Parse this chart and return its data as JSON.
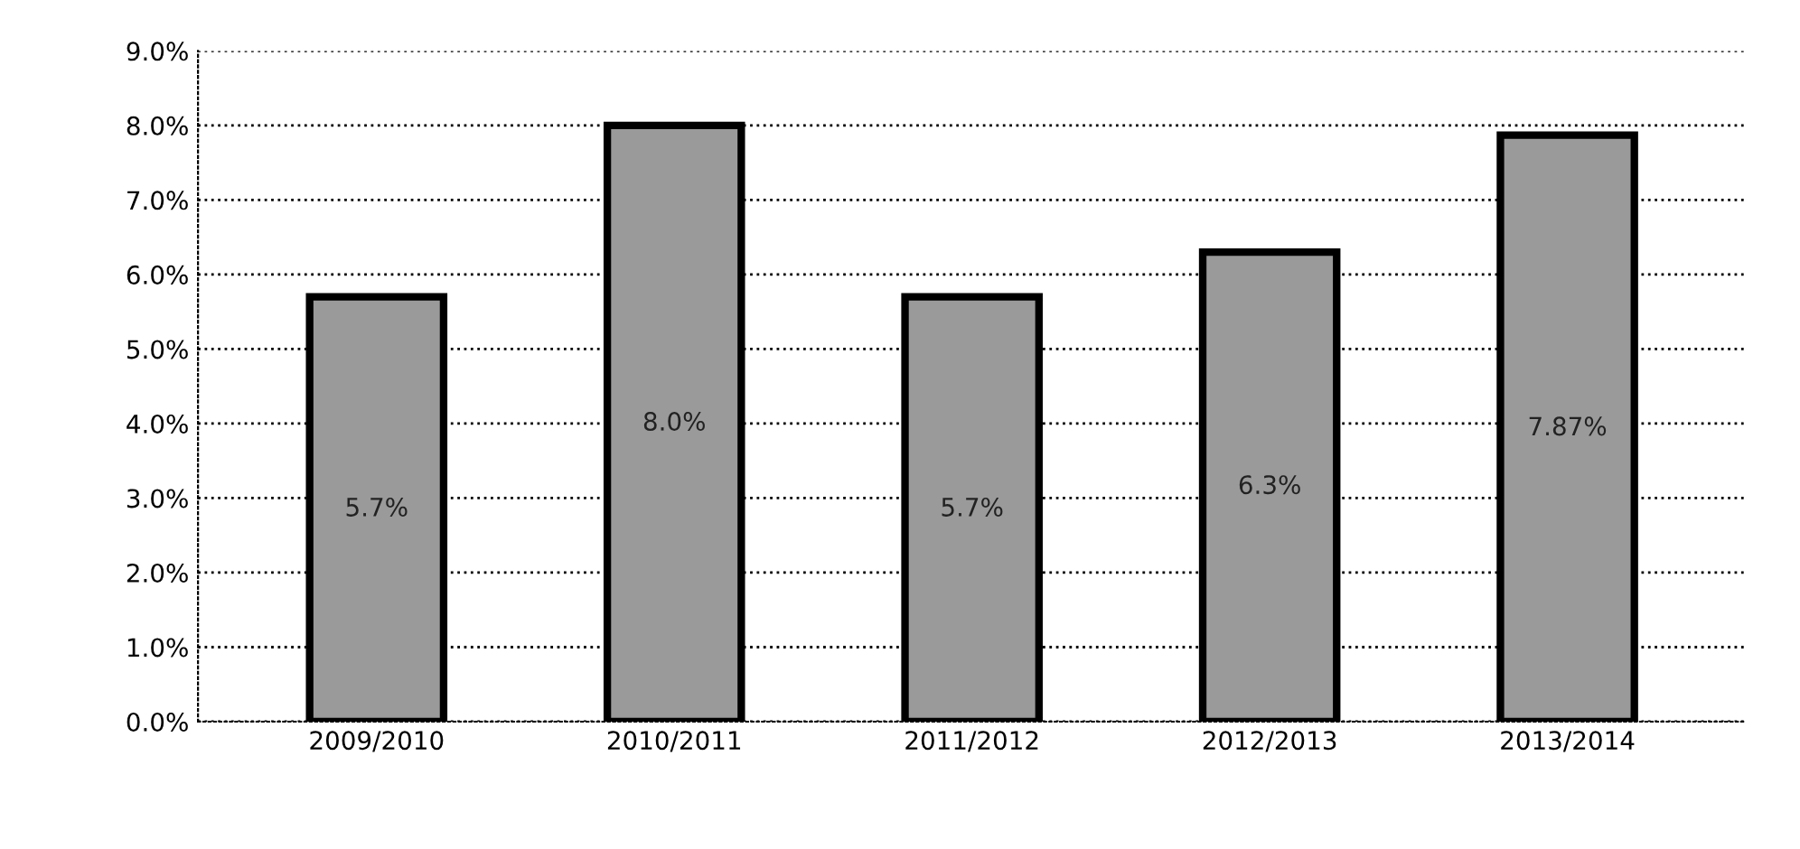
{
  "chart_data": {
    "type": "bar",
    "categories": [
      "2009/2010",
      "2010/2011",
      "2011/2012",
      "2012/2013",
      "2013/2014"
    ],
    "values": [
      5.7,
      8.0,
      5.7,
      6.3,
      7.87
    ],
    "value_labels": [
      "5.7%",
      "8.0%",
      "5.7%",
      "6.3%",
      "7.87%"
    ],
    "color": "#9a9a9a",
    "ylim": [
      0,
      9
    ],
    "yticks": [
      {
        "value": 0,
        "label": "0.0%"
      },
      {
        "value": 1,
        "label": "1.0%"
      },
      {
        "value": 2,
        "label": "2.0%"
      },
      {
        "value": 3,
        "label": "3.0%"
      },
      {
        "value": 4,
        "label": "4.0%"
      },
      {
        "value": 5,
        "label": "5.0%"
      },
      {
        "value": 6,
        "label": "6.0%"
      },
      {
        "value": 7,
        "label": "7.0%"
      },
      {
        "value": 8,
        "label": "8.0%"
      },
      {
        "value": 9,
        "label": "9.0%"
      }
    ],
    "grid": "y",
    "line_style": "dotted"
  }
}
